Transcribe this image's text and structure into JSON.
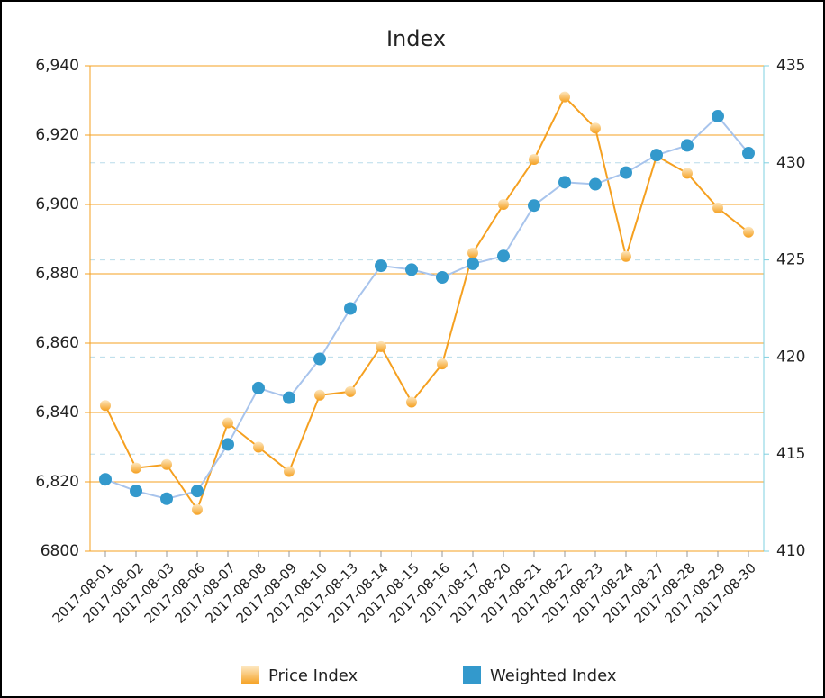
{
  "chart_data": {
    "type": "line",
    "title": "Index",
    "categories": [
      "2017-08-01",
      "2017-08-02",
      "2017-08-03",
      "2017-08-06",
      "2017-08-07",
      "2017-08-08",
      "2017-08-09",
      "2017-08-10",
      "2017-08-13",
      "2017-08-14",
      "2017-08-15",
      "2017-08-16",
      "2017-08-17",
      "2017-08-20",
      "2017-08-21",
      "2017-08-22",
      "2017-08-23",
      "2017-08-24",
      "2017-08-27",
      "2017-08-28",
      "2017-08-29",
      "2017-08-30"
    ],
    "series": [
      {
        "name": "Price Index",
        "color": "#f5a020",
        "values": [
          6842,
          6824,
          6825,
          6812,
          6837,
          6830,
          6823,
          6845,
          6846,
          6859,
          6843,
          6854,
          6886,
          6900,
          6913,
          6931,
          6922,
          6885,
          6914,
          6909,
          6899,
          6892
        ]
      },
      {
        "name": "Weighted Index",
        "color": "#3399cc",
        "axis": "y2",
        "values": [
          413.7,
          413.1,
          412.7,
          413.1,
          415.5,
          418.4,
          417.9,
          419.9,
          422.5,
          424.7,
          424.5,
          424.1,
          424.8,
          425.2,
          427.8,
          429.0,
          428.9,
          429.5,
          430.4,
          430.9,
          432.4,
          430.5
        ]
      }
    ],
    "ylim": [
      6800,
      6940
    ],
    "yticks": [
      6800,
      {
        "value": 6820,
        "label": "6,820"
      },
      {
        "value": 6840,
        "label": "6,840"
      },
      {
        "value": 6860,
        "label": "6,860"
      },
      {
        "value": 6880,
        "label": "6,880"
      },
      {
        "value": 6900,
        "label": "6,900"
      },
      {
        "value": 6920,
        "label": "6,920"
      },
      {
        "value": 6940,
        "label": "6,940"
      }
    ],
    "y2lim": [
      410,
      435
    ],
    "y2ticks": [
      410,
      415,
      420,
      425,
      430,
      435
    ],
    "grid": true,
    "legend": "bottom"
  }
}
